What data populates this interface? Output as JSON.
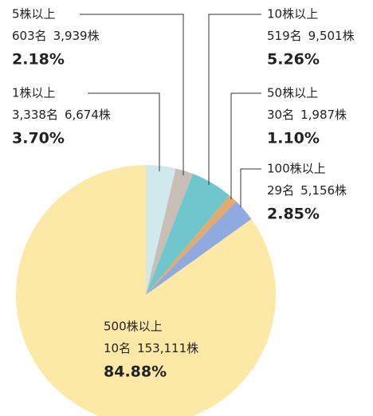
{
  "chart_data": {
    "type": "pie",
    "categories": [
      "1株以上",
      "5株以上",
      "10株以上",
      "50株以上",
      "100株以上",
      "500株以上"
    ],
    "holders": [
      "3,338名",
      "603名",
      "519名",
      "30名",
      "29名",
      "10名"
    ],
    "shares": [
      "6,674株",
      "3,939株",
      "9,501株",
      "1,987株",
      "5,156株",
      "153,111株"
    ],
    "values": [
      3.7,
      2.18,
      5.26,
      1.1,
      2.85,
      84.88
    ],
    "value_labels": [
      "3.70%",
      "2.18%",
      "5.26%",
      "1.10%",
      "2.85%",
      "84.88%"
    ],
    "colors": [
      "#cfe9ec",
      "#c9beb6",
      "#6fc6cd",
      "#e2aa6c",
      "#8eaadf",
      "#fde9a6"
    ]
  }
}
